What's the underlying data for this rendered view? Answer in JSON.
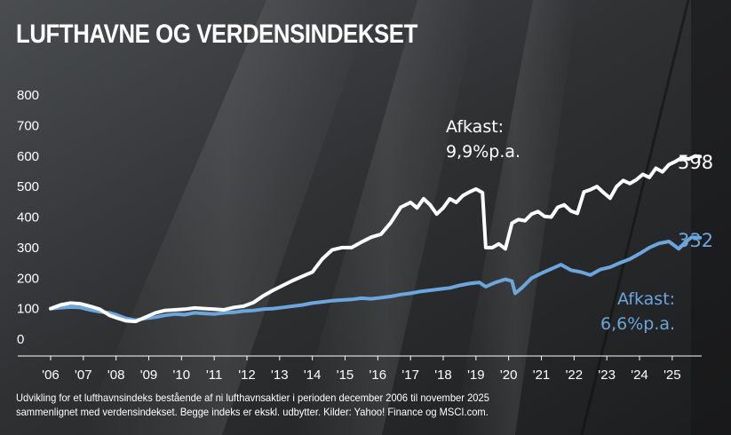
{
  "title": "LUFTHAVNE OG VERDENSINDEKSET",
  "footnote": {
    "line1": "Udvikling for et lufthavnsindeks bestående af ni lufthavnsaktier i perioden december 2006 til november 2025",
    "line2": "sammenlignet med verdensindekset. Begge indeks er ekskl. udbytter. Kilder: Yahoo! Finance og MSCI.com."
  },
  "annotations": {
    "airport_label": "Afkast:",
    "airport_return": "9,9%p.a.",
    "world_label": "Afkast:",
    "world_return": "6,6%p.a."
  },
  "end_labels": {
    "airport": "598",
    "world": "332"
  },
  "colors": {
    "airport": "#ffffff",
    "world": "#6ba6dc",
    "text": "#ffffff"
  },
  "chart_data": {
    "type": "line",
    "ylim": [
      0,
      800
    ],
    "yticks": [
      "800",
      "700",
      "600",
      "500",
      "400",
      "300",
      "200",
      "100",
      "0"
    ],
    "ytick_values": [
      800,
      700,
      600,
      500,
      400,
      300,
      200,
      100,
      0
    ],
    "xlim": [
      2006.0,
      2025.9
    ],
    "xticks": [
      "'06",
      "'07",
      "'08",
      "'09",
      "'10",
      "'11",
      "'12",
      "'13",
      "'14",
      "'15",
      "'16",
      "'17",
      "'18",
      "'19",
      "'20",
      "'21",
      "'22",
      "'23",
      "'24",
      "'25"
    ],
    "xtick_values": [
      2006,
      2007,
      2008,
      2009,
      2010,
      2011,
      2012,
      2013,
      2014,
      2015,
      2016,
      2017,
      2018,
      2019,
      2020,
      2021,
      2022,
      2023,
      2024,
      2025
    ],
    "grid": false,
    "series": [
      {
        "key": "airport",
        "color": "#ffffff",
        "end_value": 598,
        "x": [
          2006.0,
          2006.3,
          2006.6,
          2006.9,
          2007.2,
          2007.5,
          2007.8,
          2008.0,
          2008.3,
          2008.6,
          2008.9,
          2009.2,
          2009.5,
          2009.8,
          2010.1,
          2010.4,
          2010.7,
          2011.0,
          2011.3,
          2011.6,
          2011.9,
          2012.2,
          2012.5,
          2012.8,
          2013.1,
          2013.4,
          2013.7,
          2014.0,
          2014.3,
          2014.6,
          2014.9,
          2015.2,
          2015.5,
          2015.8,
          2016.1,
          2016.4,
          2016.7,
          2017.0,
          2017.2,
          2017.4,
          2017.6,
          2017.8,
          2018.0,
          2018.2,
          2018.4,
          2018.6,
          2018.8,
          2019.0,
          2019.2,
          2019.3,
          2019.5,
          2019.7,
          2019.9,
          2020.1,
          2020.3,
          2020.5,
          2020.7,
          2020.9,
          2021.1,
          2021.3,
          2021.5,
          2021.7,
          2021.9,
          2022.1,
          2022.3,
          2022.5,
          2022.7,
          2022.9,
          2023.1,
          2023.3,
          2023.5,
          2023.7,
          2023.9,
          2024.1,
          2024.3,
          2024.5,
          2024.7,
          2024.9,
          2025.1,
          2025.3,
          2025.5,
          2025.7,
          2025.85
        ],
        "values": [
          100,
          112,
          118,
          116,
          108,
          98,
          78,
          70,
          60,
          58,
          72,
          86,
          94,
          96,
          98,
          102,
          100,
          98,
          96,
          104,
          108,
          120,
          142,
          160,
          176,
          192,
          206,
          220,
          262,
          292,
          300,
          300,
          318,
          334,
          344,
          382,
          432,
          448,
          430,
          460,
          440,
          410,
          430,
          460,
          448,
          470,
          482,
          492,
          480,
          300,
          300,
          312,
          296,
          380,
          392,
          388,
          410,
          418,
          402,
          400,
          432,
          440,
          420,
          412,
          482,
          490,
          500,
          480,
          462,
          500,
          520,
          510,
          522,
          540,
          530,
          560,
          548,
          572,
          582,
          595,
          590,
          600,
          598
        ]
      },
      {
        "key": "world",
        "color": "#6ba6dc",
        "end_value": 332,
        "x": [
          2006.0,
          2006.3,
          2006.6,
          2006.9,
          2007.2,
          2007.5,
          2007.8,
          2008.0,
          2008.3,
          2008.6,
          2008.9,
          2009.2,
          2009.5,
          2009.8,
          2010.1,
          2010.4,
          2010.7,
          2011.0,
          2011.3,
          2011.6,
          2011.9,
          2012.2,
          2012.5,
          2012.8,
          2013.1,
          2013.4,
          2013.7,
          2014.0,
          2014.3,
          2014.6,
          2014.9,
          2015.2,
          2015.5,
          2015.8,
          2016.1,
          2016.4,
          2016.7,
          2017.0,
          2017.3,
          2017.6,
          2017.9,
          2018.2,
          2018.5,
          2018.8,
          2019.1,
          2019.3,
          2019.6,
          2019.9,
          2020.1,
          2020.2,
          2020.4,
          2020.7,
          2021.0,
          2021.3,
          2021.6,
          2021.9,
          2022.2,
          2022.5,
          2022.8,
          2023.1,
          2023.4,
          2023.7,
          2024.0,
          2024.3,
          2024.6,
          2024.9,
          2025.2,
          2025.4,
          2025.6,
          2025.85
        ],
        "values": [
          100,
          103,
          105,
          104,
          96,
          90,
          86,
          80,
          68,
          62,
          68,
          72,
          78,
          82,
          80,
          86,
          84,
          82,
          86,
          88,
          92,
          94,
          98,
          100,
          104,
          108,
          112,
          118,
          122,
          126,
          128,
          130,
          134,
          132,
          136,
          140,
          146,
          150,
          156,
          160,
          164,
          168,
          176,
          182,
          186,
          172,
          186,
          196,
          190,
          150,
          168,
          200,
          216,
          230,
          244,
          226,
          220,
          210,
          228,
          236,
          250,
          262,
          280,
          300,
          314,
          320,
          296,
          318,
          334,
          332
        ]
      }
    ]
  }
}
